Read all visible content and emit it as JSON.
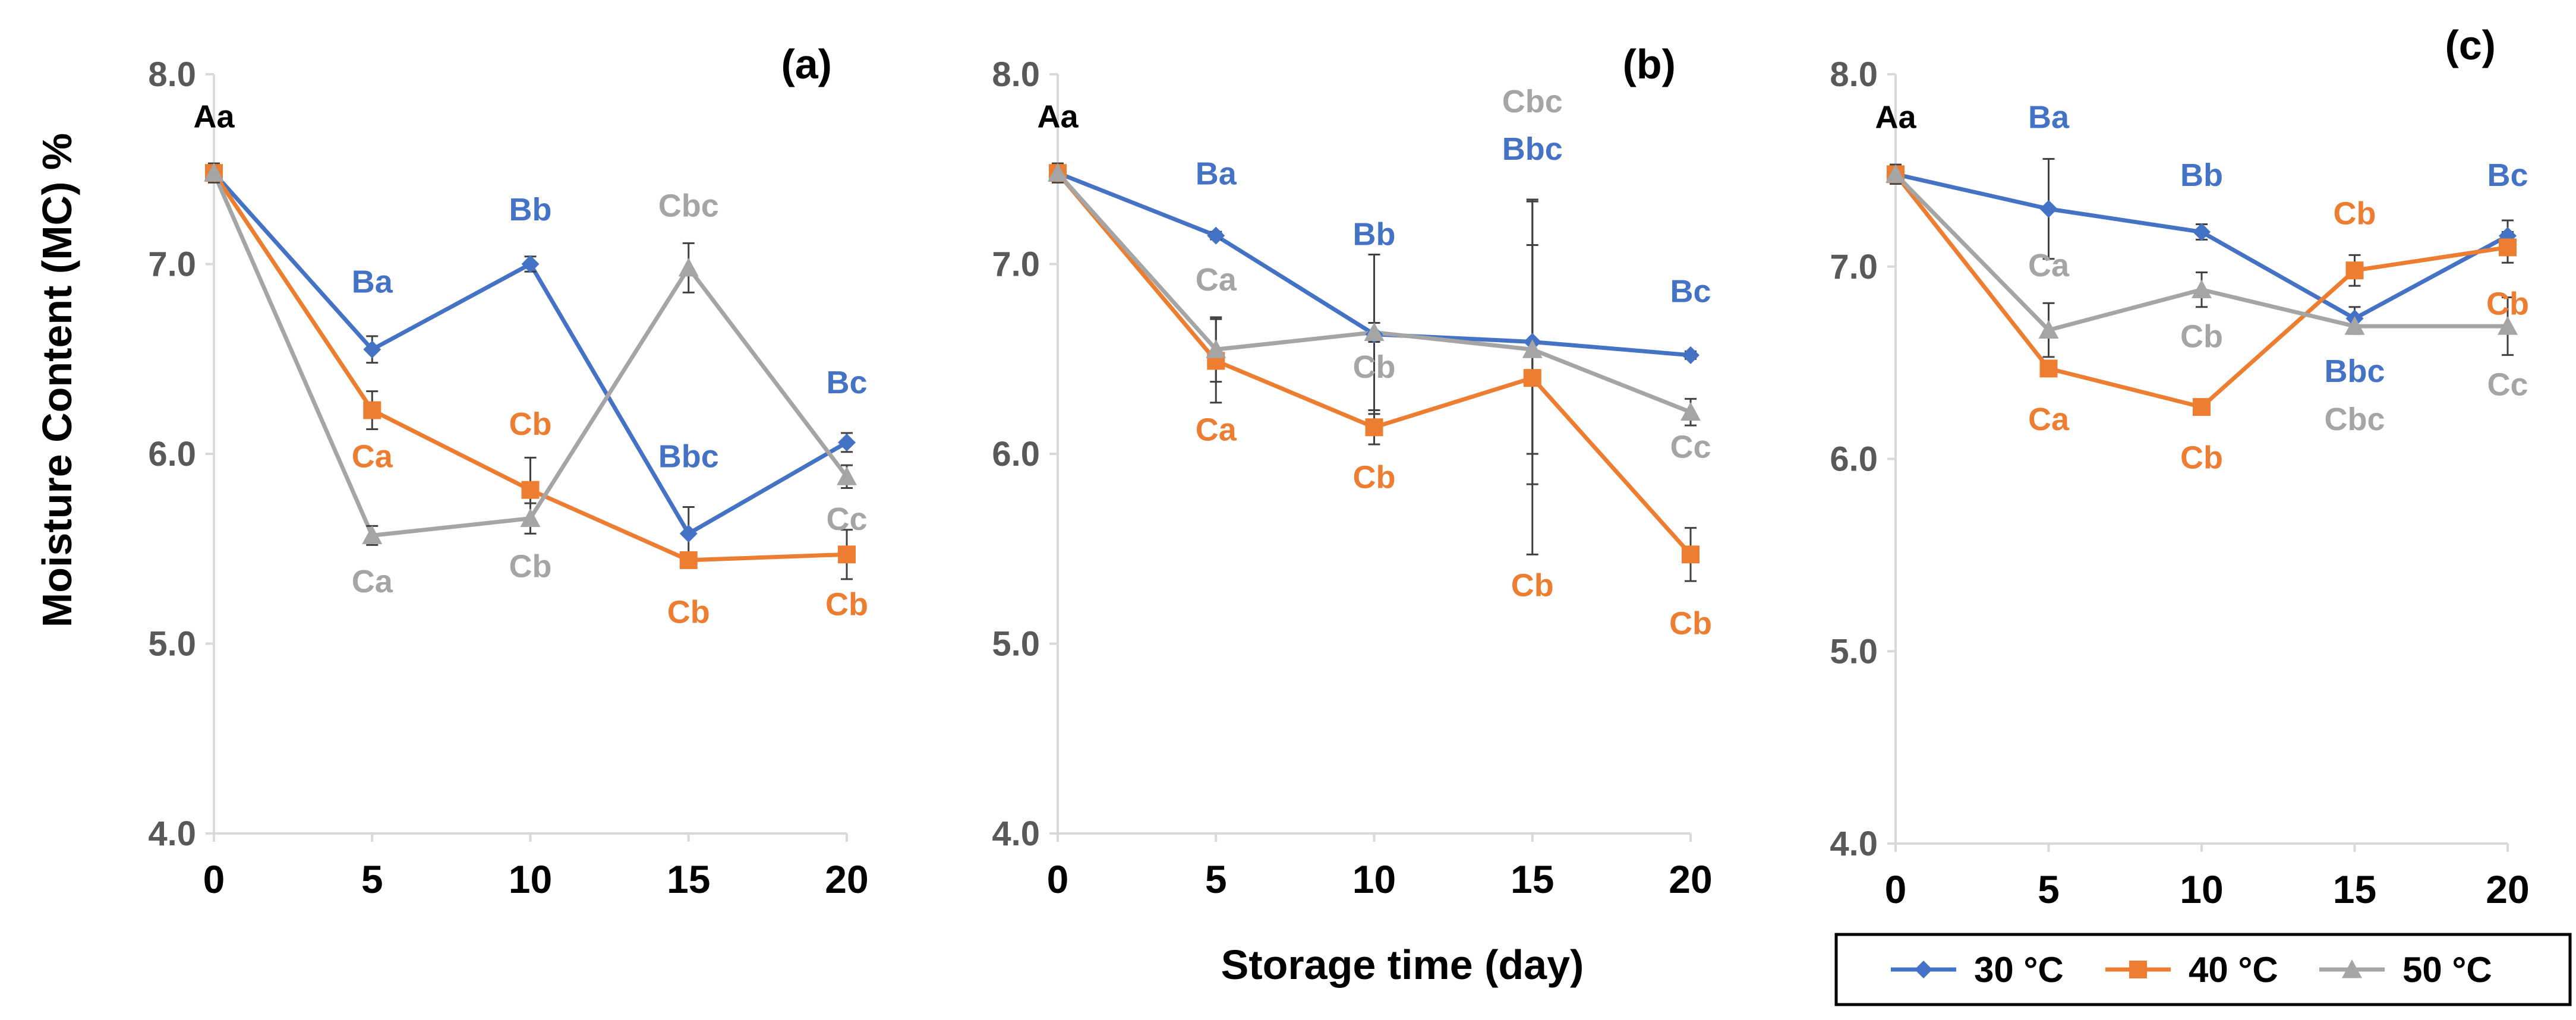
{
  "chart_data": {
    "type": "line",
    "ylabel": "Moisture Content (MC)  %",
    "xlabel": "Storage time (day)",
    "x": [
      0,
      5,
      10,
      15,
      20
    ],
    "xticks": [
      "0",
      "5",
      "10",
      "15",
      "20"
    ],
    "yticks": [
      "4.0",
      "5.0",
      "6.0",
      "7.0",
      "8.0"
    ],
    "ylim": [
      4.0,
      8.0
    ],
    "legend": [
      {
        "name": "30 °C",
        "color": "#4472C4",
        "marker": "diamond"
      },
      {
        "name": "40 °C",
        "color": "#ED7D31",
        "marker": "square"
      },
      {
        "name": "50 °C",
        "color": "#A5A5A5",
        "marker": "triangle"
      }
    ],
    "panels": [
      {
        "label": "(a)",
        "series": [
          {
            "name": "30 °C",
            "values": [
              7.48,
              6.55,
              7.0,
              5.58,
              6.06
            ],
            "errors": [
              0.05,
              0.07,
              0.04,
              0.14,
              0.05
            ]
          },
          {
            "name": "40 °C",
            "values": [
              7.48,
              6.23,
              5.81,
              5.44,
              5.47
            ],
            "errors": [
              0.05,
              0.1,
              0.17,
              0.04,
              0.13
            ]
          },
          {
            "name": "50 °C",
            "values": [
              7.48,
              5.57,
              5.66,
              6.98,
              5.88
            ],
            "errors": [
              0.05,
              0.05,
              0.08,
              0.13,
              0.06
            ]
          }
        ],
        "annotations": [
          {
            "text": "Aa",
            "series": "common",
            "x": 0,
            "y": 7.72
          },
          {
            "text": "Ba",
            "series": "30 °C",
            "x": 5,
            "y": 6.85
          },
          {
            "text": "Bb",
            "series": "30 °C",
            "x": 10,
            "y": 7.23
          },
          {
            "text": "Bbc",
            "series": "30 °C",
            "x": 15,
            "y": 5.93
          },
          {
            "text": "Bc",
            "series": "30 °C",
            "x": 20,
            "y": 6.32
          },
          {
            "text": "Ca",
            "series": "40 °C",
            "x": 5,
            "y": 5.93
          },
          {
            "text": "Cb",
            "series": "40 °C",
            "x": 10,
            "y": 6.1
          },
          {
            "text": "Cb",
            "series": "40 °C",
            "x": 15,
            "y": 5.11
          },
          {
            "text": "Cb",
            "series": "40 °C",
            "x": 20,
            "y": 5.15
          },
          {
            "text": "Ca",
            "series": "50 °C",
            "x": 5,
            "y": 5.27
          },
          {
            "text": "Cb",
            "series": "50 °C",
            "x": 10,
            "y": 5.35
          },
          {
            "text": "Cbc",
            "series": "50 °C",
            "x": 15,
            "y": 7.25
          },
          {
            "text": "Cc",
            "series": "50 °C",
            "x": 20,
            "y": 5.6
          }
        ]
      },
      {
        "label": "(b)",
        "series": [
          {
            "name": "30 °C",
            "values": [
              7.48,
              7.15,
              6.63,
              6.59,
              6.52
            ],
            "errors": [
              0.05,
              0.02,
              0.42,
              0.75,
              0.02
            ]
          },
          {
            "name": "40 °C",
            "values": [
              7.48,
              6.49,
              6.14,
              6.4,
              5.47
            ],
            "errors": [
              0.05,
              0.22,
              0.09,
              0.93,
              0.14
            ]
          },
          {
            "name": "50 °C",
            "values": [
              7.48,
              6.55,
              6.64,
              6.55,
              6.22
            ],
            "errors": [
              0.05,
              0.17,
              0.05,
              0.55,
              0.07
            ]
          }
        ],
        "annotations": [
          {
            "text": "Aa",
            "series": "common",
            "x": 0,
            "y": 7.72
          },
          {
            "text": "Ba",
            "series": "30 °C",
            "x": 5,
            "y": 7.42
          },
          {
            "text": "Bb",
            "series": "30 °C",
            "x": 10,
            "y": 7.1
          },
          {
            "text": "Bbc",
            "series": "30 °C",
            "x": 15,
            "y": 7.55
          },
          {
            "text": "Bc",
            "series": "30 °C",
            "x": 20,
            "y": 6.8
          },
          {
            "text": "Ca",
            "series": "50 °C",
            "x": 5,
            "y": 6.86
          },
          {
            "text": "Cb",
            "series": "50 °C",
            "x": 10,
            "y": 6.4
          },
          {
            "text": "Cbc",
            "series": "50 °C",
            "x": 15,
            "y": 7.8
          },
          {
            "text": "Cc",
            "series": "50 °C",
            "x": 20,
            "y": 5.98
          },
          {
            "text": "Ca",
            "series": "40 °C",
            "x": 5,
            "y": 6.07
          },
          {
            "text": "Cb",
            "series": "40 °C",
            "x": 10,
            "y": 5.82
          },
          {
            "text": "Cb",
            "series": "40 °C",
            "x": 15,
            "y": 5.25
          },
          {
            "text": "Cb",
            "series": "40 °C",
            "x": 20,
            "y": 5.05
          }
        ]
      },
      {
        "label": "(c)",
        "series": [
          {
            "name": "30 °C",
            "values": [
              7.48,
              7.3,
              7.18,
              6.73,
              7.16
            ],
            "errors": [
              0.05,
              0.26,
              0.04,
              0.06,
              0.08
            ]
          },
          {
            "name": "40 °C",
            "values": [
              7.48,
              6.47,
              6.27,
              6.98,
              7.1
            ],
            "errors": [
              0.05,
              0.04,
              0.03,
              0.08,
              0.08
            ]
          },
          {
            "name": "50 °C",
            "values": [
              7.48,
              6.67,
              6.88,
              6.69,
              6.69
            ],
            "errors": [
              0.05,
              0.14,
              0.09,
              0.04,
              0.15
            ]
          }
        ],
        "annotations": [
          {
            "text": "Aa",
            "series": "common",
            "x": 0,
            "y": 7.72
          },
          {
            "text": "Ba",
            "series": "30 °C",
            "x": 5,
            "y": 7.72
          },
          {
            "text": "Bb",
            "series": "30 °C",
            "x": 10,
            "y": 7.42
          },
          {
            "text": "Bbc",
            "series": "30 °C",
            "x": 15,
            "y": 6.4
          },
          {
            "text": "Bc",
            "series": "30 °C",
            "x": 20,
            "y": 7.42
          },
          {
            "text": "Ca",
            "series": "50 °C",
            "x": 5,
            "y": 6.95
          },
          {
            "text": "Cb",
            "series": "50 °C",
            "x": 10,
            "y": 6.58
          },
          {
            "text": "Cbc",
            "series": "50 °C",
            "x": 15,
            "y": 6.15
          },
          {
            "text": "Cc",
            "series": "50 °C",
            "x": 20,
            "y": 6.33
          },
          {
            "text": "Cb",
            "series": "40 °C",
            "x": 15,
            "y": 7.22
          },
          {
            "text": "Ca",
            "series": "40 °C",
            "x": 5,
            "y": 6.15
          },
          {
            "text": "Cb",
            "series": "40 °C",
            "x": 10,
            "y": 5.95
          },
          {
            "text": "Cb",
            "series": "40 °C",
            "x": 20,
            "y": 6.75
          }
        ]
      }
    ]
  }
}
